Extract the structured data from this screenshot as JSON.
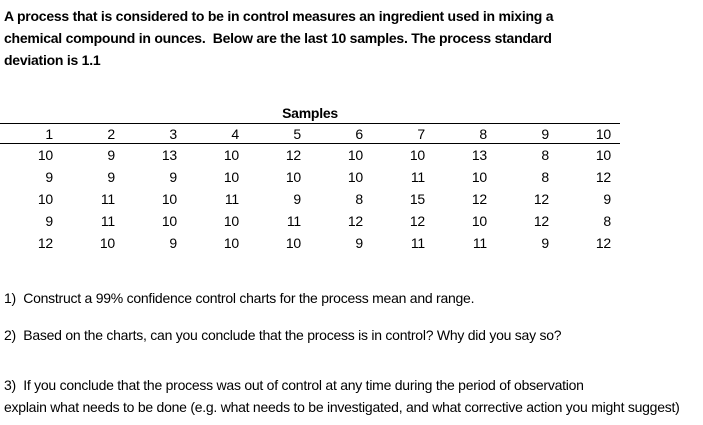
{
  "intro": {
    "text": "A process that is considered to be in control measures an ingredient used in mixing a\nchemical compound in ounces.  Below are the last 10 samples. The process standard\ndeviation is 1.1"
  },
  "table": {
    "title": "Samples",
    "columns": [
      "1",
      "2",
      "3",
      "4",
      "5",
      "6",
      "7",
      "8",
      "9",
      "10"
    ],
    "rows": [
      [
        "10",
        "9",
        "13",
        "10",
        "12",
        "10",
        "10",
        "13",
        "8",
        "10"
      ],
      [
        "9",
        "9",
        "9",
        "10",
        "10",
        "10",
        "11",
        "10",
        "8",
        "12"
      ],
      [
        "10",
        "11",
        "10",
        "11",
        "9",
        "8",
        "15",
        "12",
        "12",
        "9"
      ],
      [
        "9",
        "11",
        "10",
        "10",
        "11",
        "12",
        "12",
        "10",
        "12",
        "8"
      ],
      [
        "12",
        "10",
        "9",
        "10",
        "10",
        "9",
        "11",
        "11",
        "9",
        "12"
      ]
    ]
  },
  "questions": {
    "q1": "1)  Construct a 99% confidence control charts for the process mean and range.",
    "q2": "2)  Based on the charts, can you conclude that the process is in control? Why did you say so?",
    "q3": "3)  If you conclude that the process was out of control at any time during the period of observation\nexplain what needs to be done (e.g. what needs to be investigated, and what corrective action you might suggest)"
  },
  "colors": {
    "text": "#000000",
    "background": "#ffffff",
    "table_rule": "#000000"
  }
}
